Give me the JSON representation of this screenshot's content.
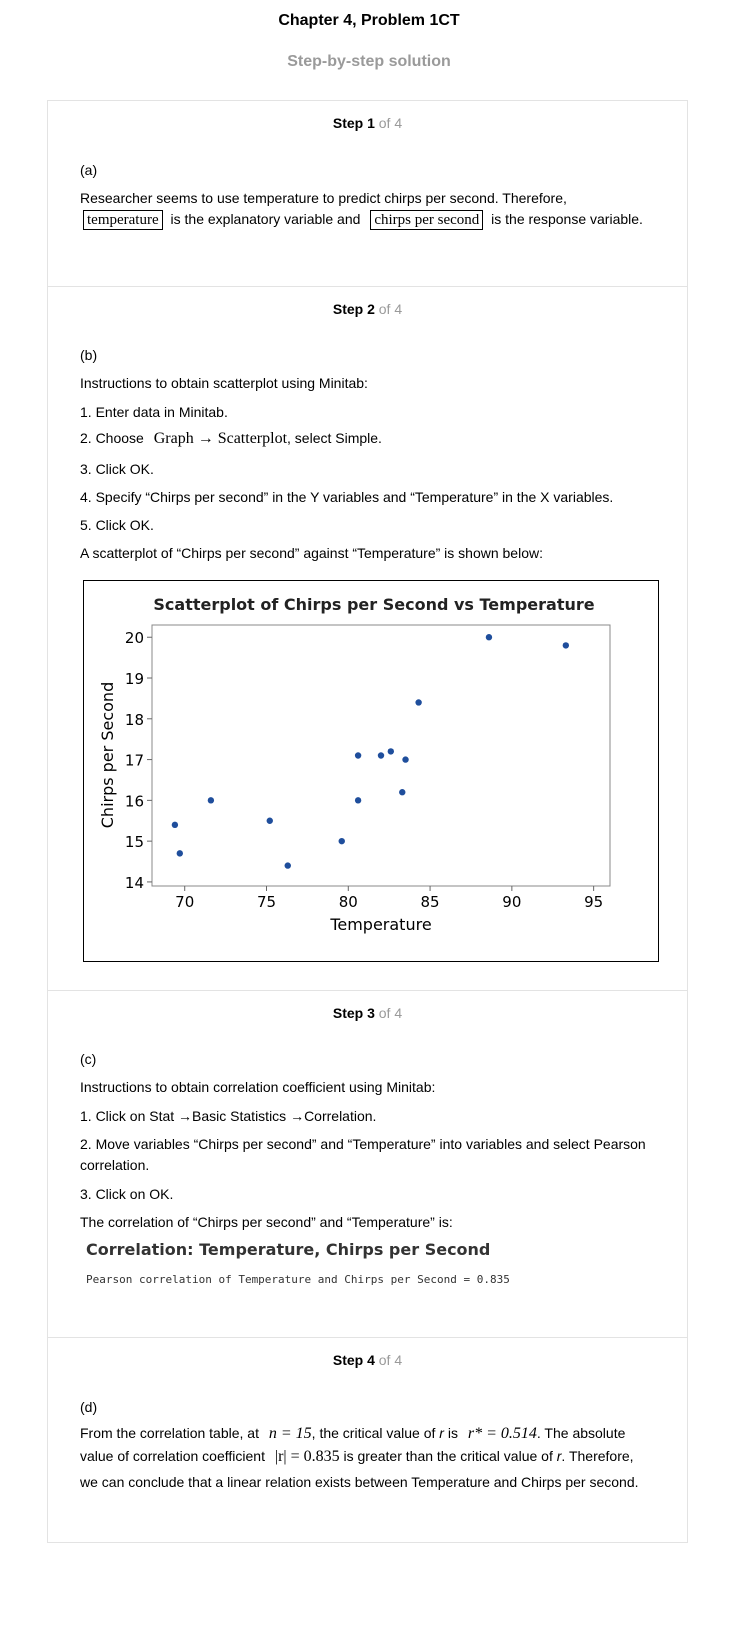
{
  "header": {
    "title": "Chapter 4, Problem 1CT",
    "subtitle": "Step-by-step solution"
  },
  "steps": [
    {
      "label": "Step 1",
      "of": "of 4",
      "part": "(a)",
      "text1": "Researcher seems to use temperature to predict chirps per second. Therefore,",
      "box1": "temperature",
      "mid": "is the explanatory variable and",
      "box2": "chirps per second",
      "end": "is the response variable."
    },
    {
      "label": "Step 2",
      "of": "of 4",
      "part": "(b)",
      "intro": "Instructions to obtain scatterplot using Minitab:",
      "i1": "1. Enter data in Minitab.",
      "i2_pre": "2. Choose",
      "i2_math": "Graph → Scatterplot",
      "i2_post": ", select Simple.",
      "i3": "3. Click OK.",
      "i4": "4. Specify “Chirps per second” in the Y variables and “Temperature” in the X variables.",
      "i5": "5. Click OK.",
      "caption": "A scatterplot of “Chirps per second” against “Temperature” is shown below:"
    },
    {
      "label": "Step 3",
      "of": "of 4",
      "part": "(c)",
      "intro": "Instructions to obtain correlation coefficient using Minitab:",
      "i1": "1. Click on Stat →Basic Statistics →Correlation.",
      "i2a": "2. Move variables “Chirps per second” and “Temperature” into variables and select Pearson",
      "i2b": "correlation.",
      "i3": "3. Click on OK.",
      "result_intro": "The correlation of “Chirps per second” and “Temperature” is:",
      "output_title": "Correlation: Temperature, Chirps per Second",
      "output_line": "Pearson correlation of Temperature and Chirps per Second = 0.835"
    },
    {
      "label": "Step 4",
      "of": "of 4",
      "part": "(d)",
      "l1_a": "From the correlation table, at",
      "l1_m1": "n = 15",
      "l1_b": ", the critical value of",
      "l1_r": "r",
      "l1_c": "is",
      "l1_m2": "r* = 0.514",
      "l1_d": ". The absolute",
      "l2_a": "value of correlation coefficient",
      "l2_m": "|r| = 0.835",
      "l2_b": "is greater than the critical value of",
      "l2_r": "r",
      "l2_c": ". Therefore,",
      "l3": "we can conclude that a linear relation exists between Temperature and Chirps per second."
    }
  ],
  "chart_data": {
    "type": "scatter",
    "title": "Scatterplot of Chirps per Second vs Temperature",
    "xlabel": "Temperature",
    "ylabel": "Chirps per Second",
    "xlim": [
      68,
      96
    ],
    "ylim": [
      13.9,
      20.3
    ],
    "xticks": [
      70,
      75,
      80,
      85,
      90,
      95
    ],
    "yticks": [
      14,
      15,
      16,
      17,
      18,
      19,
      20
    ],
    "grid": false,
    "marker_color": "#1f4e9c",
    "x": [
      88.6,
      93.3,
      84.3,
      80.6,
      82.0,
      82.6,
      83.5,
      71.6,
      80.6,
      83.3,
      69.4,
      69.7,
      75.2,
      79.6,
      76.3
    ],
    "y": [
      20.0,
      19.8,
      18.4,
      17.1,
      17.1,
      17.2,
      17.0,
      16.0,
      16.0,
      16.2,
      15.4,
      14.7,
      15.5,
      15.0,
      14.4
    ]
  }
}
